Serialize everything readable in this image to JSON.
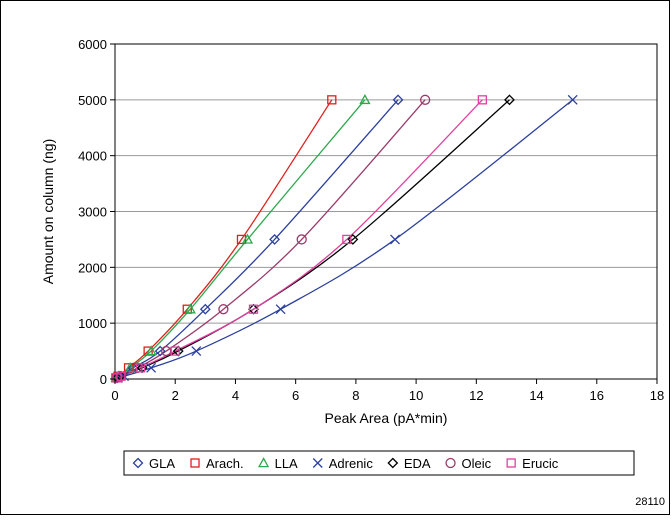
{
  "chart_data": {
    "type": "scatter",
    "title": "",
    "xlabel": "Peak Area (pA*min)",
    "ylabel": "Amount on column (ng)",
    "xlim": [
      0,
      18
    ],
    "ylim": [
      0,
      6000
    ],
    "xticks": [
      0,
      2,
      4,
      6,
      8,
      10,
      12,
      14,
      16,
      18
    ],
    "yticks": [
      0,
      1000,
      2000,
      3000,
      4000,
      5000,
      6000
    ],
    "grid": "horizontal",
    "legend": "bottom",
    "footnote": "28110",
    "series": [
      {
        "name": "GLA",
        "marker": "diamond",
        "color": "#2b3f9e",
        "x": [
          0.05,
          0.15,
          0.6,
          1.5,
          3.0,
          5.3,
          9.4
        ],
        "y": [
          20,
          50,
          200,
          500,
          1250,
          2500,
          5000
        ]
      },
      {
        "name": "Arach.",
        "marker": "square",
        "color": "#e0201c",
        "x": [
          0.03,
          0.1,
          0.45,
          1.1,
          2.4,
          4.2,
          7.2
        ],
        "y": [
          20,
          50,
          200,
          500,
          1250,
          2500,
          5000
        ]
      },
      {
        "name": "LLA",
        "marker": "triangle",
        "color": "#2aa84a",
        "x": [
          0.04,
          0.12,
          0.5,
          1.2,
          2.5,
          4.4,
          8.3
        ],
        "y": [
          20,
          50,
          200,
          500,
          1250,
          2500,
          5000
        ]
      },
      {
        "name": "Adrenic",
        "marker": "x",
        "color": "#2b3f9e",
        "x": [
          0.1,
          0.3,
          1.2,
          2.7,
          5.5,
          9.3,
          15.2
        ],
        "y": [
          20,
          50,
          200,
          500,
          1250,
          2500,
          5000
        ]
      },
      {
        "name": "EDA",
        "marker": "diamond",
        "color": "#000000",
        "x": [
          0.08,
          0.2,
          0.9,
          2.1,
          4.6,
          7.9,
          13.1
        ],
        "y": [
          20,
          50,
          200,
          500,
          1250,
          2500,
          5000
        ]
      },
      {
        "name": "Oleic",
        "marker": "circle",
        "color": "#9b3a6a",
        "x": [
          0.06,
          0.18,
          0.75,
          1.7,
          3.6,
          6.2,
          10.3
        ],
        "y": [
          20,
          50,
          200,
          500,
          1250,
          2500,
          5000
        ]
      },
      {
        "name": "Erucic",
        "marker": "square",
        "color": "#e040a0",
        "x": [
          0.07,
          0.2,
          0.85,
          2.0,
          4.6,
          7.7,
          12.2
        ],
        "y": [
          20,
          50,
          200,
          500,
          1250,
          2500,
          5000
        ]
      }
    ]
  }
}
